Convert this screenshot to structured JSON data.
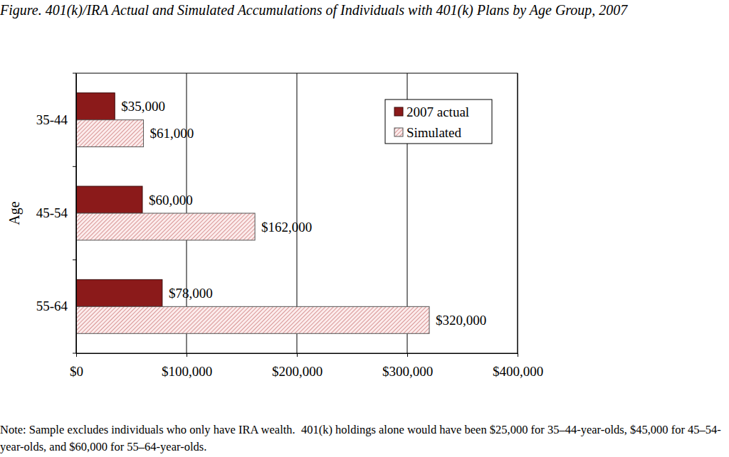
{
  "chart_data": {
    "type": "bar",
    "orientation": "horizontal",
    "title": "Figure. 401(k)/IRA Actual and Simulated Accumulations of Individuals with 401(k) Plans by Age Group, 2007",
    "y_label": "Age",
    "note": "Note: Sample excludes individuals who only have IRA wealth.  401(k) holdings alone would have been $25,000 for 35–44-year-olds, $45,000 for 45–54-year-olds, and $60,000 for 55–64-year-olds.",
    "categories": [
      "35-44",
      "45-54",
      "55-64"
    ],
    "series": [
      {
        "name": "2007 actual",
        "color": "#8b1a1a",
        "values": [
          35000,
          60000,
          78000
        ],
        "value_labels": [
          "$35,000",
          "$60,000",
          "$78,000"
        ]
      },
      {
        "name": "Simulated",
        "color": "#b23a3a",
        "values": [
          61000,
          162000,
          320000
        ],
        "value_labels": [
          "$61,000",
          "$162,000",
          "$320,000"
        ]
      }
    ],
    "xlim": [
      0,
      400000
    ],
    "xticks": [
      {
        "value": 0,
        "label": "$0"
      },
      {
        "value": 100000,
        "label": "$100,000"
      },
      {
        "value": 200000,
        "label": "$200,000"
      },
      {
        "value": 300000,
        "label": "$300,000"
      },
      {
        "value": 400000,
        "label": "$400,000"
      }
    ],
    "grid": true,
    "legend": "top-right",
    "data_labels": true
  }
}
